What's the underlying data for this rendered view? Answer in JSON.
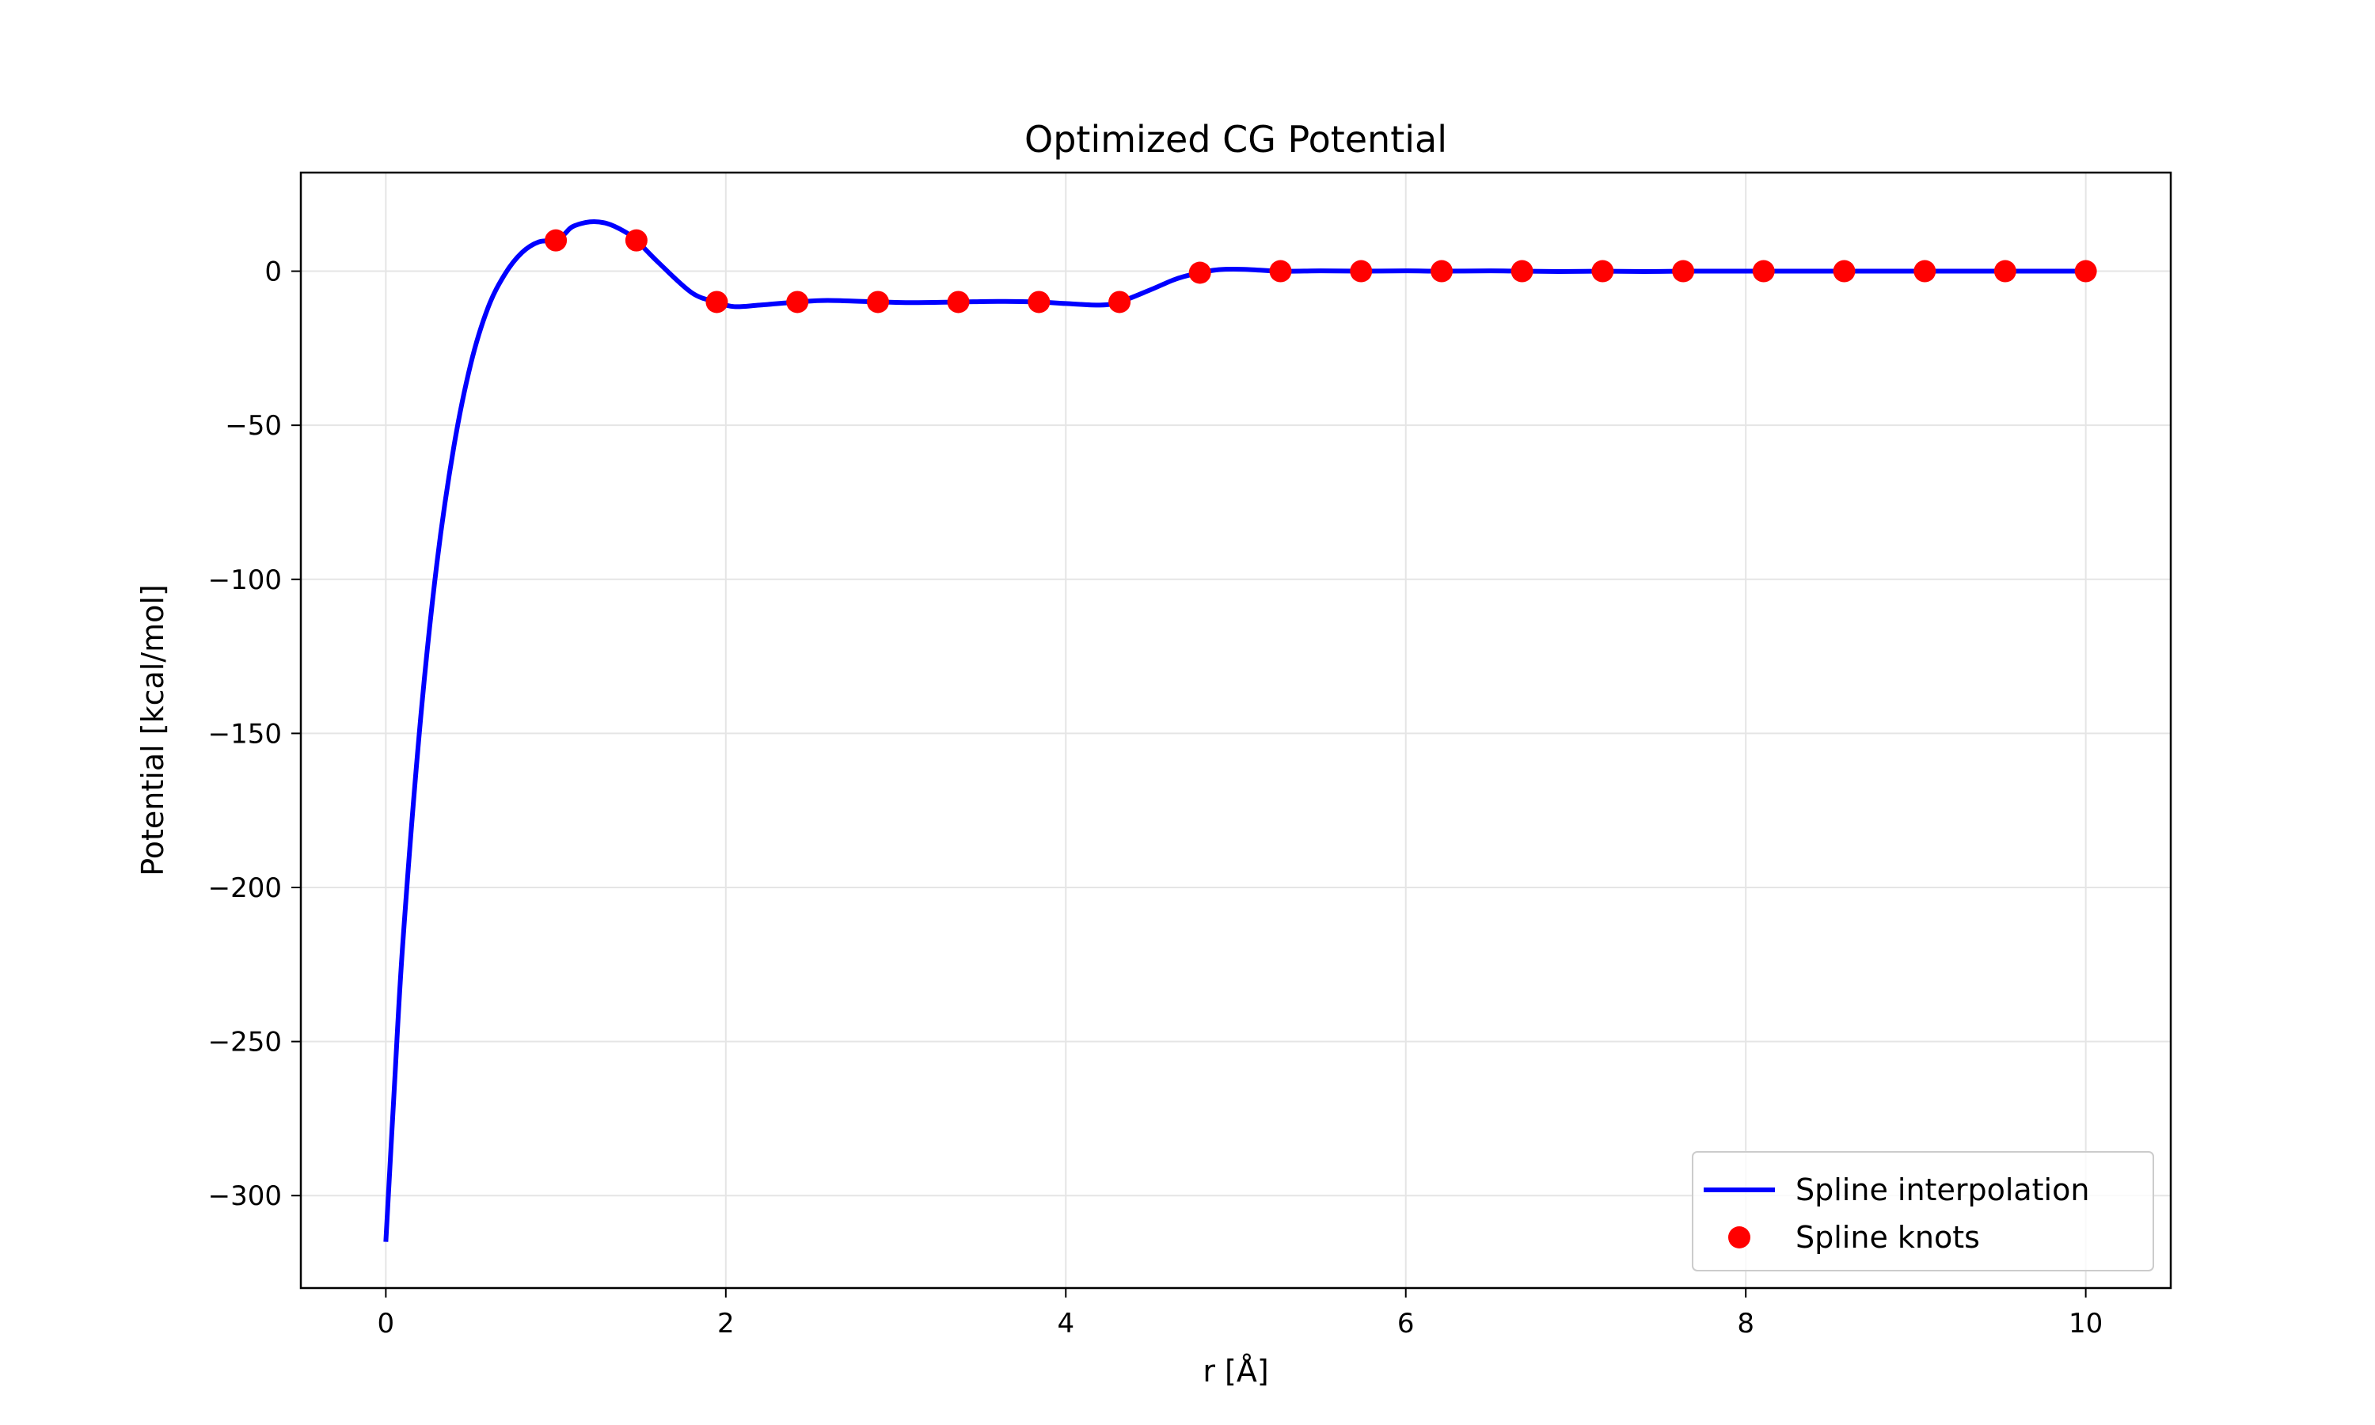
{
  "chart_data": {
    "type": "line",
    "title": "Optimized CG Potential",
    "xlabel": "r [Å]",
    "ylabel": "Potential [kcal/mol]",
    "xlim": [
      -0.5,
      10.5
    ],
    "ylim": [
      -330,
      32
    ],
    "xticks": [
      0,
      2,
      4,
      6,
      8,
      10
    ],
    "yticks": [
      0,
      -50,
      -100,
      -150,
      -200,
      -250,
      -300
    ],
    "xtick_labels": [
      "0",
      "2",
      "4",
      "6",
      "8",
      "10"
    ],
    "ytick_labels": [
      "0",
      "−50",
      "−100",
      "−150",
      "−200",
      "−250",
      "−300"
    ],
    "grid": true,
    "legend_position": "bottom-right",
    "colors": {
      "line": "#0000ff",
      "knots": "#ff0000",
      "grid": "#e5e5e5",
      "frame": "#000000"
    },
    "series": [
      {
        "name": "Spline interpolation",
        "kind": "line",
        "x": [
          0,
          0.05,
          0.1,
          0.2,
          0.3,
          0.4,
          0.5,
          0.6,
          0.7,
          0.8,
          0.9,
          1.0,
          1.05,
          1.1,
          1.2,
          1.3,
          1.4,
          1.474,
          1.6,
          1.8,
          1.947,
          2.05,
          2.2,
          2.421,
          2.6,
          2.895,
          3.1,
          3.368,
          3.6,
          3.842,
          4.0,
          4.2,
          4.316,
          4.5,
          4.65,
          4.789,
          4.9,
          5.05,
          5.263,
          5.5,
          5.737,
          6.0,
          6.211,
          6.5,
          6.684,
          6.9,
          7.158,
          7.4,
          7.632,
          7.9,
          8.105,
          8.4,
          8.579,
          8.8,
          9.053,
          9.3,
          9.526,
          9.8,
          10.0
        ],
        "y": [
          -315,
          -265,
          -218,
          -148,
          -95,
          -57,
          -30,
          -12,
          -1,
          6,
          9.5,
          10,
          12,
          14.5,
          16,
          15.5,
          13,
          10,
          3,
          -7,
          -10,
          -11.5,
          -11,
          -10,
          -9.5,
          -10,
          -10.2,
          -10,
          -9.8,
          -10,
          -10.5,
          -11,
          -10,
          -6,
          -2.5,
          -0.5,
          0.5,
          0.6,
          0,
          0.1,
          0,
          0.1,
          0,
          0.1,
          0,
          -0.1,
          0,
          -0.1,
          0,
          0,
          0,
          0,
          0,
          0,
          0,
          0,
          0,
          0,
          0
        ]
      },
      {
        "name": "Spline knots",
        "kind": "points",
        "x": [
          1.0,
          1.474,
          1.947,
          2.421,
          2.895,
          3.368,
          3.842,
          4.316,
          4.789,
          5.263,
          5.737,
          6.211,
          6.684,
          7.158,
          7.632,
          8.105,
          8.579,
          9.053,
          9.526,
          10.0
        ],
        "y": [
          10,
          10,
          -10,
          -10,
          -10,
          -10,
          -10,
          -10,
          -0.5,
          0,
          0,
          0,
          0,
          0,
          0,
          0,
          0,
          0,
          0,
          0
        ]
      }
    ]
  }
}
